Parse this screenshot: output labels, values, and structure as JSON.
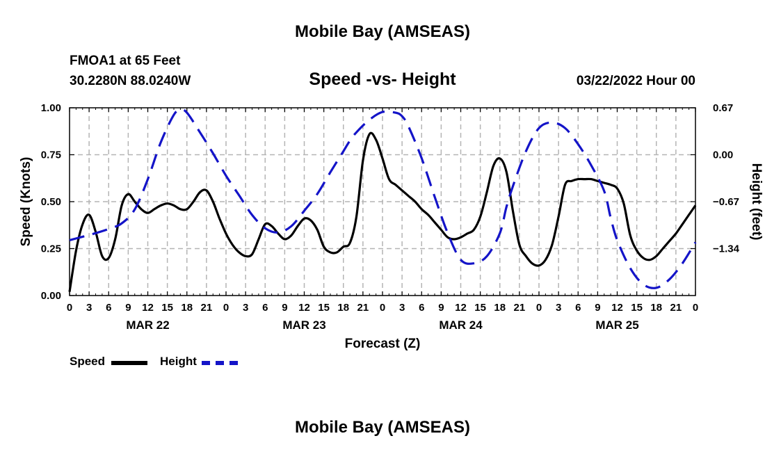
{
  "header": {
    "title": "Mobile Bay (AMSEAS)",
    "station": "FMOA1 at 65 Feet",
    "location": "30.2280N  88.0240W",
    "subtitle": "Speed -vs- Height",
    "datetime": "03/22/2022 Hour 00"
  },
  "legend": {
    "speed_label": "Speed",
    "height_label": "Height",
    "speed_color": "#000000",
    "height_color": "#1414c8"
  },
  "footer": {
    "title": "Mobile Bay (AMSEAS)"
  },
  "chart_data": {
    "type": "line",
    "title": "Speed -vs- Height",
    "xlabel": "Forecast (Z)",
    "ylabel": "Speed (Knots)",
    "y2label": "Height (feet)",
    "xlim": [
      0,
      96
    ],
    "ylim": [
      0,
      1.0
    ],
    "y2lim": [
      -2.01,
      0.67
    ],
    "y_ticks": [
      "0.00",
      "0.25",
      "0.50",
      "0.75",
      "1.00"
    ],
    "y2_ticks": [
      "-1.34",
      "-0.67",
      "0.00",
      "0.67"
    ],
    "y2_tick_values": [
      -1.34,
      -0.67,
      0.0,
      0.67
    ],
    "x_tick_labels": [
      "0",
      "3",
      "6",
      "9",
      "12",
      "15",
      "18",
      "21",
      "0",
      "3",
      "6",
      "9",
      "12",
      "15",
      "18",
      "21",
      "0",
      "3",
      "6",
      "9",
      "12",
      "15",
      "18",
      "21",
      "0",
      "3",
      "6",
      "9",
      "12",
      "15",
      "18",
      "21",
      "0"
    ],
    "day_labels": [
      {
        "label": "MAR 22",
        "x": 12
      },
      {
        "label": "MAR 23",
        "x": 36
      },
      {
        "label": "MAR 24",
        "x": 60
      },
      {
        "label": "MAR 25",
        "x": 84
      }
    ],
    "grid": true,
    "series": [
      {
        "name": "Speed",
        "axis": "left",
        "style": "solid",
        "color": "#000000",
        "x": [
          0,
          1,
          2,
          3,
          4,
          5,
          6,
          7,
          8,
          9,
          10,
          11,
          12,
          13,
          14,
          15,
          16,
          17,
          18,
          19,
          20,
          21,
          22,
          23,
          24,
          25,
          26,
          27,
          28,
          29,
          30,
          31,
          32,
          33,
          34,
          35,
          36,
          37,
          38,
          39,
          40,
          41,
          42,
          43,
          44,
          45,
          46,
          47,
          48,
          49,
          50,
          51,
          52,
          53,
          54,
          55,
          56,
          57,
          58,
          59,
          60,
          61,
          62,
          63,
          64,
          65,
          66,
          67,
          68,
          69,
          70,
          71,
          72,
          73,
          74,
          75,
          76,
          77,
          78,
          79,
          80,
          81,
          82,
          83,
          84,
          85,
          86,
          87,
          88,
          89,
          90,
          91,
          92,
          93,
          94,
          95,
          96
        ],
        "values": [
          0.02,
          0.24,
          0.38,
          0.43,
          0.34,
          0.21,
          0.2,
          0.3,
          0.48,
          0.54,
          0.5,
          0.46,
          0.44,
          0.46,
          0.48,
          0.49,
          0.48,
          0.46,
          0.46,
          0.5,
          0.55,
          0.56,
          0.5,
          0.41,
          0.33,
          0.27,
          0.23,
          0.21,
          0.22,
          0.3,
          0.38,
          0.37,
          0.33,
          0.3,
          0.32,
          0.37,
          0.41,
          0.4,
          0.35,
          0.26,
          0.23,
          0.23,
          0.26,
          0.28,
          0.42,
          0.72,
          0.86,
          0.83,
          0.73,
          0.62,
          0.59,
          0.56,
          0.53,
          0.5,
          0.46,
          0.43,
          0.39,
          0.35,
          0.31,
          0.3,
          0.31,
          0.33,
          0.35,
          0.42,
          0.55,
          0.69,
          0.73,
          0.66,
          0.45,
          0.27,
          0.21,
          0.17,
          0.16,
          0.19,
          0.27,
          0.42,
          0.59,
          0.61,
          0.62,
          0.62,
          0.62,
          0.61,
          0.6,
          0.59,
          0.57,
          0.49,
          0.32,
          0.24,
          0.2,
          0.19,
          0.21,
          0.25,
          0.29,
          0.33,
          0.38,
          0.43,
          0.48
        ]
      },
      {
        "name": "Height",
        "axis": "right",
        "style": "dashed",
        "color": "#1414c8",
        "x": [
          0,
          2,
          4,
          6,
          8,
          10,
          12,
          14,
          16,
          17,
          18,
          20,
          22,
          24,
          26,
          28,
          30,
          32,
          34,
          36,
          38,
          40,
          42,
          43,
          44,
          46,
          48,
          50,
          51,
          52,
          54,
          56,
          58,
          60,
          62,
          64,
          66,
          67,
          68,
          70,
          72,
          74,
          76,
          78,
          80,
          82,
          83,
          84,
          86,
          88,
          90,
          92,
          94,
          96
        ],
        "values": [
          -1.22,
          -1.17,
          -1.12,
          -1.06,
          -0.98,
          -0.78,
          -0.35,
          0.18,
          0.57,
          0.64,
          0.6,
          0.32,
          0.02,
          -0.3,
          -0.58,
          -0.86,
          -1.05,
          -1.11,
          -1.02,
          -0.8,
          -0.56,
          -0.25,
          0.05,
          0.2,
          0.32,
          0.5,
          0.61,
          0.6,
          0.55,
          0.4,
          -0.05,
          -0.6,
          -1.12,
          -1.5,
          -1.55,
          -1.45,
          -1.12,
          -0.75,
          -0.45,
          0.05,
          0.38,
          0.46,
          0.38,
          0.15,
          -0.15,
          -0.52,
          -0.9,
          -1.22,
          -1.62,
          -1.85,
          -1.9,
          -1.78,
          -1.55,
          -1.25
        ]
      }
    ],
    "legend_placement": "bottom-left"
  }
}
